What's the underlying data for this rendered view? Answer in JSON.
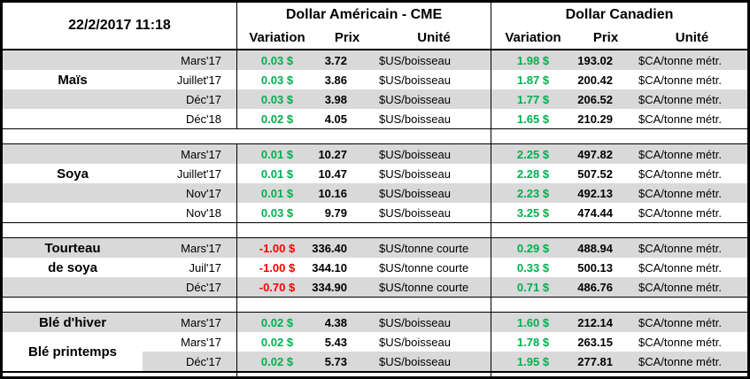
{
  "datetime": "22/2/2017 11:18",
  "sections": {
    "us_title": "Dollar Américain - CME",
    "ca_title": "Dollar Canadien"
  },
  "columns": {
    "variation": "Variation",
    "prix": "Prix",
    "unite": "Unité"
  },
  "colors": {
    "positive": "#00B050",
    "negative": "#FF0000",
    "stripe": "#D9D9D9",
    "grid": "#000000"
  },
  "groups": [
    {
      "commodity": "Maïs",
      "rows": [
        {
          "label": "",
          "month": "Mars'17",
          "us_var": "0.03 $",
          "us_prix": "3.72",
          "us_unit": "$US/boisseau",
          "ca_var": "1.98 $",
          "ca_prix": "193.02",
          "ca_unit": "$CA/tonne métr."
        },
        {
          "label": "Maïs",
          "month": "Juillet'17",
          "us_var": "0.03 $",
          "us_prix": "3.86",
          "us_unit": "$US/boisseau",
          "ca_var": "1.87 $",
          "ca_prix": "200.42",
          "ca_unit": "$CA/tonne métr."
        },
        {
          "label": "",
          "month": "Déc'17",
          "us_var": "0.03 $",
          "us_prix": "3.98",
          "us_unit": "$US/boisseau",
          "ca_var": "1.77 $",
          "ca_prix": "206.52",
          "ca_unit": "$CA/tonne métr."
        },
        {
          "label": "",
          "month": "Déc'18",
          "us_var": "0.02 $",
          "us_prix": "4.05",
          "us_unit": "$US/boisseau",
          "ca_var": "1.65 $",
          "ca_prix": "210.29",
          "ca_unit": "$CA/tonne métr."
        }
      ]
    },
    {
      "commodity": "Soya",
      "rows": [
        {
          "label": "",
          "month": "Mars'17",
          "us_var": "0.01 $",
          "us_prix": "10.27",
          "us_unit": "$US/boisseau",
          "ca_var": "2.25 $",
          "ca_prix": "497.82",
          "ca_unit": "$CA/tonne métr."
        },
        {
          "label": "Soya",
          "month": "Juillet'17",
          "us_var": "0.01 $",
          "us_prix": "10.47",
          "us_unit": "$US/boisseau",
          "ca_var": "2.28 $",
          "ca_prix": "507.52",
          "ca_unit": "$CA/tonne métr."
        },
        {
          "label": "",
          "month": "Nov'17",
          "us_var": "0.01 $",
          "us_prix": "10.16",
          "us_unit": "$US/boisseau",
          "ca_var": "2.23 $",
          "ca_prix": "492.13",
          "ca_unit": "$CA/tonne métr."
        },
        {
          "label": "",
          "month": "Nov'18",
          "us_var": "0.03 $",
          "us_prix": "9.79",
          "us_unit": "$US/boisseau",
          "ca_var": "3.25 $",
          "ca_prix": "474.44",
          "ca_unit": "$CA/tonne métr."
        }
      ]
    },
    {
      "commodity": "Tourteau de soya",
      "rows": [
        {
          "label": "Tourteau",
          "month": "Mars'17",
          "us_var": "-1.00 $",
          "us_prix": "336.40",
          "us_unit": "$US/tonne courte",
          "ca_var": "0.29 $",
          "ca_prix": "488.94",
          "ca_unit": "$CA/tonne métr."
        },
        {
          "label": "de soya",
          "month": "Juil'17",
          "us_var": "-1.00 $",
          "us_prix": "344.10",
          "us_unit": "$US/tonne courte",
          "ca_var": "0.33 $",
          "ca_prix": "500.13",
          "ca_unit": "$CA/tonne métr."
        },
        {
          "label": "",
          "month": "Déc'17",
          "us_var": "-0.70 $",
          "us_prix": "334.90",
          "us_unit": "$US/tonne courte",
          "ca_var": "0.71 $",
          "ca_prix": "486.76",
          "ca_unit": "$CA/tonne métr."
        }
      ]
    },
    {
      "commodity": "Blé",
      "rows": [
        {
          "label": "Blé d'hiver",
          "month": "Mars'17",
          "us_var": "0.02 $",
          "us_prix": "4.38",
          "us_unit": "$US/boisseau",
          "ca_var": "1.60 $",
          "ca_prix": "212.14",
          "ca_unit": "$CA/tonne métr."
        },
        {
          "label": "Blé printemps",
          "month": "Mars'17",
          "us_var": "0.02 $",
          "us_prix": "5.43",
          "us_unit": "$US/boisseau",
          "ca_var": "1.78 $",
          "ca_prix": "263.15",
          "ca_unit": "$CA/tonne métr."
        },
        {
          "label": "",
          "month": "Déc'17",
          "us_var": "0.02 $",
          "us_prix": "5.73",
          "us_unit": "$US/boisseau",
          "ca_var": "1.95 $",
          "ca_prix": "277.81",
          "ca_unit": "$CA/tonne métr."
        }
      ]
    }
  ]
}
